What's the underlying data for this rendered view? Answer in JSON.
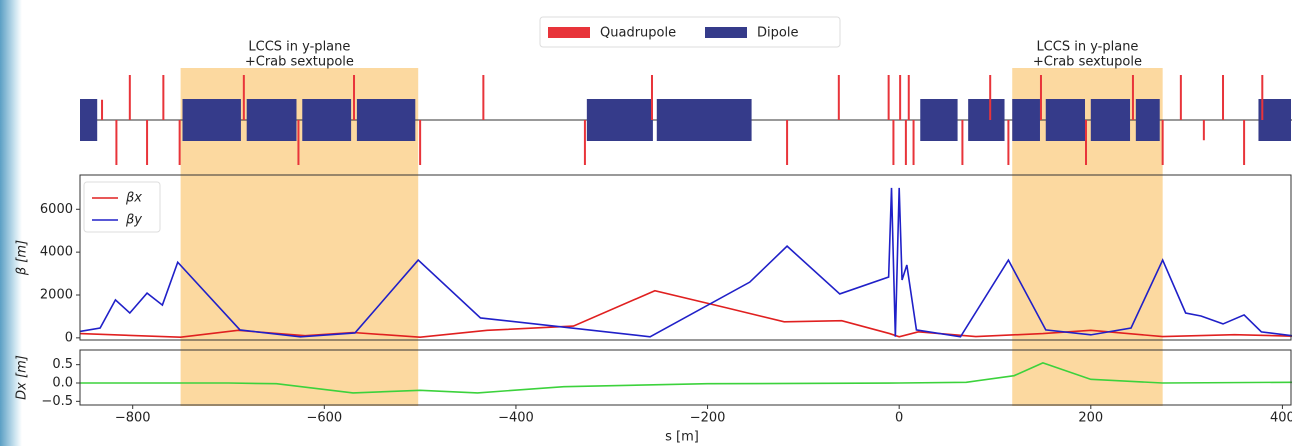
{
  "chart_data": [
    {
      "type": "lattice",
      "xlim": [
        -855,
        410
      ],
      "regions": [
        {
          "start": -750,
          "end": -502,
          "label": [
            "LCCS in y-plane",
            "+Crab sextupole"
          ]
        },
        {
          "start": 118,
          "end": 275,
          "label": [
            "LCCS in y-plane",
            "+Crab sextupole"
          ]
        }
      ],
      "region_color": "#fcd9a0",
      "series": [
        {
          "name": "Quadrupole",
          "color": "#e8343a",
          "s": [
            -832,
            -817,
            -803,
            -785,
            -768,
            -751,
            -684,
            -627,
            -569,
            -500,
            -434,
            -328,
            -258,
            -117,
            -63,
            -11,
            -6,
            1,
            7,
            10,
            15,
            66,
            95,
            114,
            148,
            195,
            244,
            275,
            294,
            318,
            338,
            360,
            379
          ],
          "strength": [
            0.45,
            -1,
            1,
            -1,
            1,
            -1,
            1,
            -1,
            1,
            -1,
            1,
            -1,
            1,
            -1,
            1,
            1,
            -1,
            1,
            -1,
            1,
            -1,
            -1,
            1,
            -1,
            1,
            -1,
            1,
            -1,
            1,
            -0.45,
            1,
            -1,
            1
          ]
        },
        {
          "name": "Dipole",
          "color": "#353b8a",
          "start": [
            -855,
            -748,
            -681,
            -623,
            -566,
            -326,
            -253,
            22,
            72,
            118,
            153,
            200,
            247,
            375
          ],
          "end": [
            -836,
            -686,
            -628,
            -571,
            -504,
            -256,
            -153,
            62,
            111,
            148,
            195,
            242,
            273,
            410
          ]
        }
      ]
    },
    {
      "type": "line",
      "ylabel": "β [m]",
      "xlim": [
        -855,
        410
      ],
      "ylim": [
        -100,
        7600
      ],
      "yticks": [
        0,
        2000,
        4000,
        6000
      ],
      "series": [
        {
          "name": "βx",
          "color": "#e02020",
          "x": [
            -855,
            -750,
            -690,
            -620,
            -570,
            -500,
            -430,
            -340,
            -255,
            -180,
            -120,
            -60,
            -10,
            0,
            20,
            80,
            150,
            200,
            275,
            350,
            410
          ],
          "values": [
            200,
            30,
            350,
            100,
            250,
            30,
            350,
            550,
            2200,
            1400,
            750,
            800,
            200,
            50,
            280,
            60,
            200,
            350,
            60,
            150,
            80
          ]
        },
        {
          "name": "βy",
          "color": "#2020c8",
          "x": [
            -855,
            -834,
            -818,
            -803,
            -785,
            -769,
            -753,
            -688,
            -625,
            -568,
            -502,
            -437,
            -260,
            -156,
            -117,
            -62,
            -11,
            -8,
            -4,
            0,
            3,
            8,
            18,
            64,
            114,
            153,
            200,
            242,
            275,
            299,
            315,
            338,
            360,
            378,
            410
          ],
          "values": [
            300,
            460,
            1770,
            1160,
            2090,
            1530,
            3530,
            370,
            50,
            230,
            3630,
            930,
            50,
            2600,
            4280,
            2050,
            2840,
            7000,
            50,
            7000,
            2700,
            3400,
            370,
            50,
            3630,
            370,
            140,
            460,
            3630,
            1160,
            1020,
            650,
            1070,
            280,
            100
          ]
        }
      ]
    },
    {
      "type": "line",
      "ylabel": "Dx [m]",
      "xlabel": "s [m]",
      "xlim": [
        -855,
        410
      ],
      "xticks": [
        {
          "value": -800,
          "label": "−800"
        },
        {
          "value": -600,
          "label": "−600"
        },
        {
          "value": -400,
          "label": "−400"
        },
        {
          "value": -200,
          "label": "−200"
        },
        0,
        200,
        400
      ],
      "ylim": [
        -0.6,
        0.9
      ],
      "yticks": [
        0.5,
        {
          "value": 0,
          "label": "0.0"
        },
        {
          "value": -0.5,
          "label": "−0.5"
        }
      ],
      "series": [
        {
          "name": "Dx",
          "color": "#3cd23c",
          "x": [
            -855,
            -700,
            -650,
            -570,
            -500,
            -440,
            -350,
            -200,
            0,
            70,
            120,
            150,
            200,
            275,
            410
          ],
          "values": [
            0,
            0,
            -0.02,
            -0.27,
            -0.2,
            -0.27,
            -0.1,
            -0.02,
            0,
            0.02,
            0.2,
            0.55,
            0.1,
            0,
            0.02
          ]
        }
      ]
    }
  ]
}
